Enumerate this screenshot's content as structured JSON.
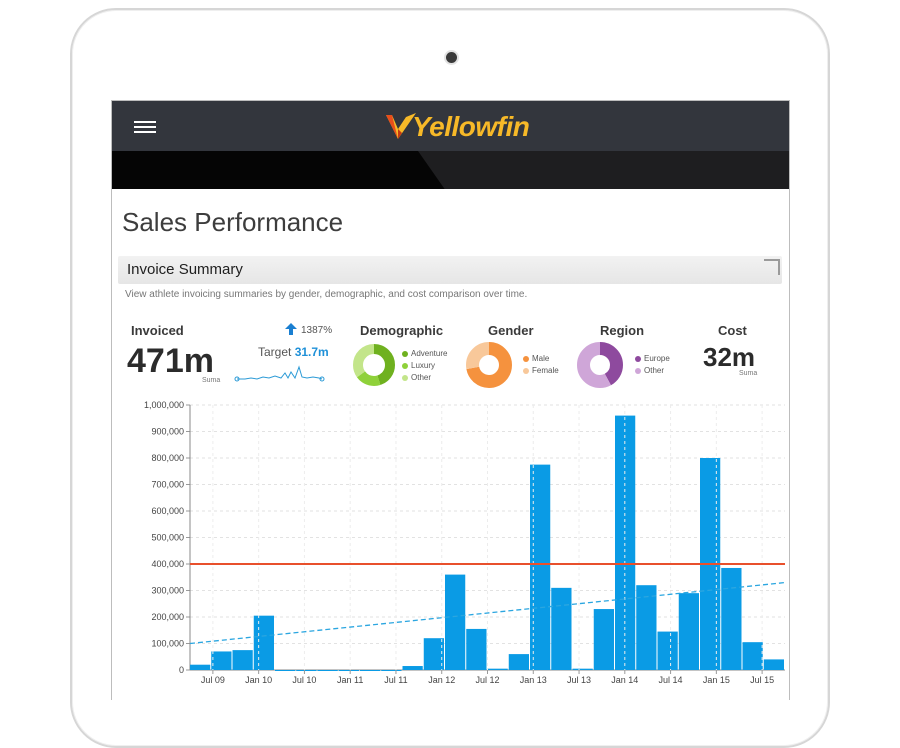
{
  "brand": {
    "name": "Yellowfin",
    "prefix": "Y",
    "suffix": "ellowfin"
  },
  "page": {
    "title": "Sales Performance"
  },
  "section": {
    "title": "Invoice Summary",
    "description": "View athlete invoicing summaries by gender, demographic, and cost comparison over time."
  },
  "kpis": {
    "invoiced": {
      "label": "Invoiced",
      "value": "471m",
      "unit": "Suma",
      "change": "1387%",
      "target_label": "Target",
      "target_value": "31.7m"
    },
    "demographic": {
      "label": "Demographic",
      "legend": [
        "Adventure",
        "Luxury",
        "Other"
      ],
      "shares": [
        0.45,
        0.2,
        0.35
      ],
      "colors": [
        "#6fb11f",
        "#8fd13a",
        "#c3e58a"
      ]
    },
    "gender": {
      "label": "Gender",
      "legend": [
        "Male",
        "Female"
      ],
      "shares": [
        0.72,
        0.28
      ],
      "colors": [
        "#f5923e",
        "#f8c89a"
      ]
    },
    "region": {
      "label": "Region",
      "legend": [
        "Europe",
        "Other"
      ],
      "shares": [
        0.42,
        0.58
      ],
      "colors": [
        "#8e4a9e",
        "#cfa6d8"
      ]
    },
    "cost": {
      "label": "Cost",
      "value": "32m",
      "unit": "Suma"
    }
  },
  "colors": {
    "bar": "#0a9be5",
    "target_line": "#e8502c",
    "trend": "#2ba6e0",
    "sparkline": "#2b9ad6",
    "up_arrow": "#1a7fd1"
  },
  "chart_data": {
    "type": "bar",
    "title": "",
    "xlabel": "",
    "ylabel": "",
    "ylim": [
      0,
      1000000
    ],
    "y_ticks": [
      "1,000,000",
      "900,000",
      "800,000",
      "700,000",
      "600,000",
      "500,000",
      "400,000",
      "300,000",
      "200,000",
      "100,000",
      "0"
    ],
    "x_ticks": [
      "Jul 09",
      "Jan 10",
      "Jul 10",
      "Jan 11",
      "Jul 11",
      "Jan 12",
      "Jul 12",
      "Jan 13",
      "Jul 13",
      "Jan 14",
      "Jul 14",
      "Jan 15",
      "Jul 15"
    ],
    "values": [
      20000,
      70000,
      75000,
      205000,
      0,
      0,
      0,
      0,
      0,
      0,
      15000,
      120000,
      360000,
      155000,
      5000,
      60000,
      775000,
      310000,
      5000,
      230000,
      960000,
      320000,
      145000,
      290000,
      800000,
      385000,
      105000,
      40000
    ],
    "target_line": 400000,
    "trend": {
      "start": 100000,
      "end": 330000
    }
  }
}
